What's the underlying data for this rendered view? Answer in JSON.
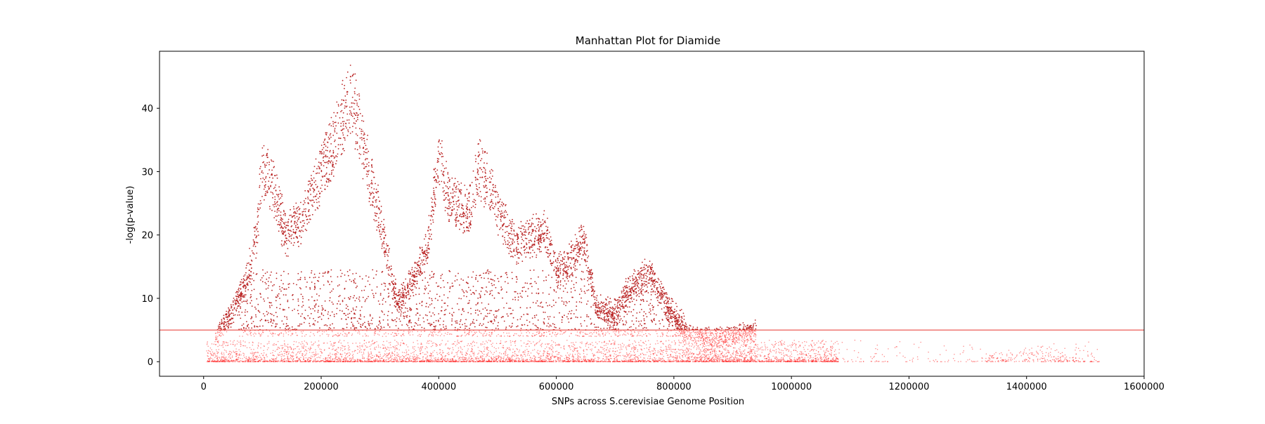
{
  "chart_data": {
    "type": "scatter",
    "title": "Manhattan Plot for Diamide",
    "xlabel": "SNPs across S.cerevisiae Genome Position",
    "ylabel": "-log(p-value)",
    "xlim": [
      -75000,
      1600000
    ],
    "ylim": [
      -2.3,
      49
    ],
    "x_ticks": [
      0,
      200000,
      400000,
      600000,
      800000,
      1000000,
      1200000,
      1400000,
      1600000
    ],
    "y_ticks": [
      0,
      10,
      20,
      30,
      40
    ],
    "x_tick_labels": [
      "0",
      "200000",
      "400000",
      "600000",
      "800000",
      "1000000",
      "1200000",
      "1400000",
      "1600000"
    ],
    "y_tick_labels": [
      "0",
      "10",
      "20",
      "30",
      "40"
    ],
    "grid": false,
    "threshold": {
      "y": 5,
      "color": "#e8332a"
    },
    "colors": {
      "significant": "#b71c1c",
      "nonsignificant": "#ff2a2a",
      "threshold": "#e8332a"
    },
    "peak_trend": [
      {
        "x": 10000,
        "y": 3
      },
      {
        "x": 40000,
        "y": 7
      },
      {
        "x": 70000,
        "y": 13
      },
      {
        "x": 90000,
        "y": 22
      },
      {
        "x": 100000,
        "y": 34
      },
      {
        "x": 120000,
        "y": 30
      },
      {
        "x": 140000,
        "y": 22
      },
      {
        "x": 170000,
        "y": 25
      },
      {
        "x": 200000,
        "y": 33
      },
      {
        "x": 230000,
        "y": 40
      },
      {
        "x": 250000,
        "y": 46.8
      },
      {
        "x": 270000,
        "y": 38
      },
      {
        "x": 300000,
        "y": 25
      },
      {
        "x": 330000,
        "y": 10
      },
      {
        "x": 360000,
        "y": 15
      },
      {
        "x": 380000,
        "y": 20
      },
      {
        "x": 400000,
        "y": 35.5
      },
      {
        "x": 420000,
        "y": 28
      },
      {
        "x": 450000,
        "y": 26
      },
      {
        "x": 470000,
        "y": 34
      },
      {
        "x": 500000,
        "y": 27
      },
      {
        "x": 530000,
        "y": 20
      },
      {
        "x": 560000,
        "y": 22
      },
      {
        "x": 580000,
        "y": 23
      },
      {
        "x": 600000,
        "y": 16
      },
      {
        "x": 620000,
        "y": 17
      },
      {
        "x": 645000,
        "y": 21.5
      },
      {
        "x": 670000,
        "y": 9
      },
      {
        "x": 700000,
        "y": 8
      },
      {
        "x": 720000,
        "y": 12.5
      },
      {
        "x": 760000,
        "y": 15.5
      },
      {
        "x": 790000,
        "y": 9
      },
      {
        "x": 820000,
        "y": 5
      },
      {
        "x": 870000,
        "y": 4
      },
      {
        "x": 940000,
        "y": 5.5
      },
      {
        "x": 1000000,
        "y": 3
      },
      {
        "x": 1060000,
        "y": 2
      },
      {
        "x": 1100000,
        "y": 0.6
      },
      {
        "x": 1200000,
        "y": 0.5
      },
      {
        "x": 1300000,
        "y": 0.8
      },
      {
        "x": 1350000,
        "y": 1.6
      },
      {
        "x": 1410000,
        "y": 2.3
      },
      {
        "x": 1450000,
        "y": 3.1
      },
      {
        "x": 1490000,
        "y": 0.5
      },
      {
        "x": 1525000,
        "y": 0.3
      }
    ]
  }
}
